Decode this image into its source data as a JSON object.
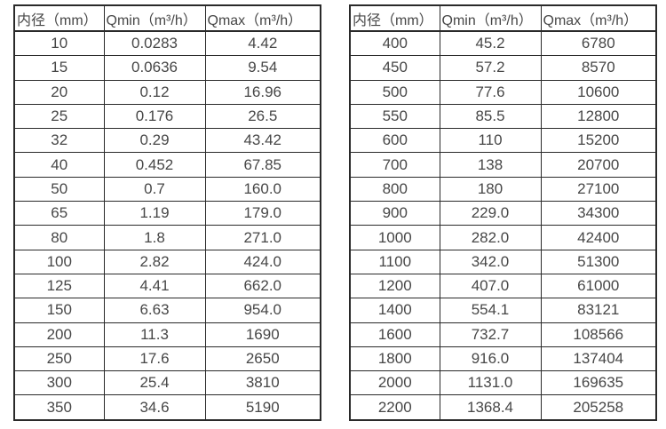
{
  "page": {
    "background_color": "#ffffff",
    "text_color": "#474747",
    "border_color": "#2a2a2a"
  },
  "tables": [
    {
      "headers": [
        "内径（mm）",
        "Qmin（m³/h）",
        "Qmax（m³/h）"
      ],
      "rows": [
        [
          "10",
          "0.0283",
          "4.42"
        ],
        [
          "15",
          "0.0636",
          "9.54"
        ],
        [
          "20",
          "0.12",
          "16.96"
        ],
        [
          "25",
          "0.176",
          "26.5"
        ],
        [
          "32",
          "0.29",
          "43.42"
        ],
        [
          "40",
          "0.452",
          "67.85"
        ],
        [
          "50",
          "0.7",
          "160.0"
        ],
        [
          "65",
          "1.19",
          "179.0"
        ],
        [
          "80",
          "1.8",
          "271.0"
        ],
        [
          "100",
          "2.82",
          "424.0"
        ],
        [
          "125",
          "4.41",
          "662.0"
        ],
        [
          "150",
          "6.63",
          "954.0"
        ],
        [
          "200",
          "11.3",
          "1690"
        ],
        [
          "250",
          "17.6",
          "2650"
        ],
        [
          "300",
          "25.4",
          "3810"
        ],
        [
          "350",
          "34.6",
          "5190"
        ]
      ]
    },
    {
      "headers": [
        "内径（mm）",
        "Qmin（m³/h）",
        "Qmax（m³/h）"
      ],
      "rows": [
        [
          "400",
          "45.2",
          "6780"
        ],
        [
          "450",
          "57.2",
          "8570"
        ],
        [
          "500",
          "77.6",
          "10600"
        ],
        [
          "550",
          "85.5",
          "12800"
        ],
        [
          "600",
          "110",
          "15200"
        ],
        [
          "700",
          "138",
          "20700"
        ],
        [
          "800",
          "180",
          "27100"
        ],
        [
          "900",
          "229.0",
          "34300"
        ],
        [
          "1000",
          "282.0",
          "42400"
        ],
        [
          "1100",
          "342.0",
          "51300"
        ],
        [
          "1200",
          "407.0",
          "61000"
        ],
        [
          "1400",
          "554.1",
          "83121"
        ],
        [
          "1600",
          "732.7",
          "108566"
        ],
        [
          "1800",
          "916.0",
          "137404"
        ],
        [
          "2000",
          "1131.0",
          "169635"
        ],
        [
          "2200",
          "1368.4",
          "205258"
        ]
      ]
    }
  ]
}
